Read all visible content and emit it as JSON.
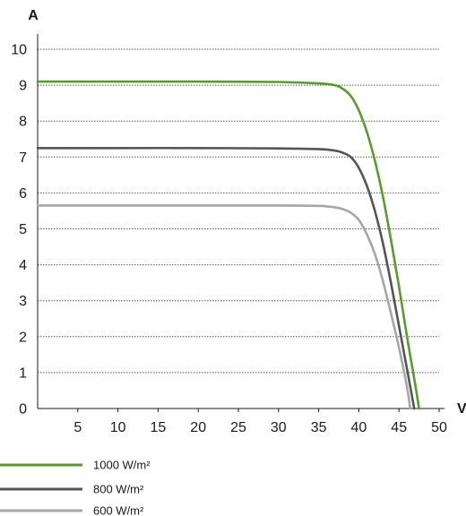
{
  "chart_data": {
    "type": "line",
    "xlabel": "V",
    "ylabel": "A",
    "xlim": [
      0,
      50
    ],
    "ylim": [
      0,
      10
    ],
    "x_ticks": [
      "5",
      "10",
      "15",
      "20",
      "25",
      "30",
      "35",
      "40",
      "45",
      "50"
    ],
    "y_ticks": [
      "0",
      "1",
      "2",
      "3",
      "4",
      "5",
      "6",
      "7",
      "8",
      "9",
      "10"
    ],
    "grid": "horizontal dotted",
    "legend_position": "bottom-left",
    "series": [
      {
        "name": "1000 W/m²",
        "color": "#5a9a2f",
        "points": [
          [
            0,
            9.1
          ],
          [
            10,
            9.1
          ],
          [
            20,
            9.1
          ],
          [
            30,
            9.09
          ],
          [
            35,
            9.05
          ],
          [
            37,
            9.0
          ],
          [
            38,
            8.9
          ],
          [
            39,
            8.7
          ],
          [
            40,
            8.3
          ],
          [
            41,
            7.7
          ],
          [
            42,
            6.9
          ],
          [
            43,
            5.9
          ],
          [
            44,
            4.7
          ],
          [
            45,
            3.4
          ],
          [
            46,
            2.0
          ],
          [
            47,
            0.7
          ],
          [
            47.5,
            0
          ]
        ]
      },
      {
        "name": "800 W/m²",
        "color": "#555555",
        "points": [
          [
            0,
            7.25
          ],
          [
            10,
            7.25
          ],
          [
            20,
            7.25
          ],
          [
            30,
            7.24
          ],
          [
            35,
            7.22
          ],
          [
            37,
            7.18
          ],
          [
            38,
            7.12
          ],
          [
            39,
            7.0
          ],
          [
            40,
            6.7
          ],
          [
            41,
            6.2
          ],
          [
            42,
            5.5
          ],
          [
            43,
            4.6
          ],
          [
            44,
            3.5
          ],
          [
            45,
            2.3
          ],
          [
            46,
            1.1
          ],
          [
            46.9,
            0
          ]
        ]
      },
      {
        "name": "600 W/m²",
        "color": "#a6a6a6",
        "points": [
          [
            0,
            5.65
          ],
          [
            10,
            5.65
          ],
          [
            20,
            5.65
          ],
          [
            30,
            5.65
          ],
          [
            35,
            5.64
          ],
          [
            37,
            5.6
          ],
          [
            38,
            5.55
          ],
          [
            39,
            5.45
          ],
          [
            40,
            5.25
          ],
          [
            41,
            4.85
          ],
          [
            42,
            4.3
          ],
          [
            43,
            3.55
          ],
          [
            44,
            2.65
          ],
          [
            45,
            1.7
          ],
          [
            46,
            0.6
          ],
          [
            46.4,
            0
          ]
        ]
      }
    ]
  }
}
